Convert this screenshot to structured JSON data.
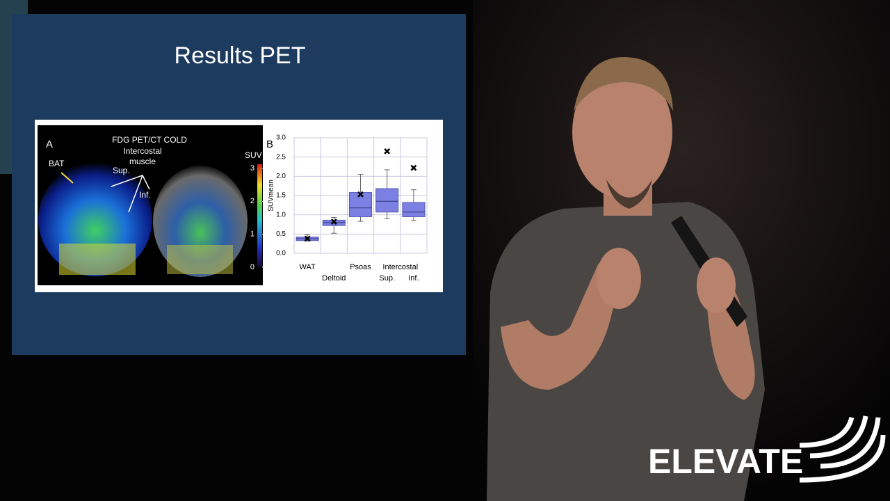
{
  "slide": {
    "title": "Results PET",
    "panel_a": {
      "letter": "A",
      "heading": "FDG PET/CT  COLD",
      "subheading": "Intercostal muscle",
      "bat": "BAT",
      "sup": "Sup.",
      "inf": "Inf.",
      "colorbar_title": "SUV",
      "colorbar_ticks": [
        3,
        2,
        1,
        0
      ]
    }
  },
  "logo": "ELEVATE",
  "chart_data": {
    "type": "boxplot",
    "panel_letter": "B",
    "y_label": "SUVmean",
    "group_label": "Intercostal",
    "categories": [
      "WAT",
      "Deltoid",
      "Psoas",
      "Sup.",
      "Inf."
    ],
    "whisker_low": [
      0.32,
      0.52,
      0.83,
      0.9,
      0.85
    ],
    "q1": [
      0.33,
      0.72,
      0.95,
      1.07,
      0.95
    ],
    "median": [
      0.38,
      0.8,
      1.18,
      1.35,
      1.07
    ],
    "q3": [
      0.42,
      0.86,
      1.58,
      1.68,
      1.32
    ],
    "whisker_high": [
      0.48,
      0.93,
      2.05,
      2.17,
      1.65
    ],
    "mean": [
      0.38,
      0.82,
      1.53,
      2.65,
      2.22
    ],
    "color": "#7b80e2",
    "ylim": [
      0,
      3
    ],
    "yticks": [
      {
        "value": 0,
        "label": "0.0"
      },
      {
        "value": 0.5,
        "label": "0.5"
      },
      {
        "value": 1,
        "label": "1.0"
      },
      {
        "value": 1.5,
        "label": "1.5"
      },
      {
        "value": 2,
        "label": "2.0"
      },
      {
        "value": 2.5,
        "label": "2.5"
      },
      {
        "value": 3,
        "label": "3.0"
      }
    ],
    "grid": true
  }
}
